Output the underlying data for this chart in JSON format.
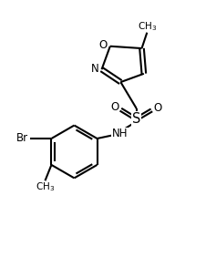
{
  "bg_color": "#ffffff",
  "line_color": "#000000",
  "line_width": 1.5,
  "font_size": 8.5,
  "figsize": [
    2.37,
    2.82
  ],
  "dpi": 100,
  "xlim": [
    0,
    10
  ],
  "ylim": [
    0,
    11.8
  ]
}
